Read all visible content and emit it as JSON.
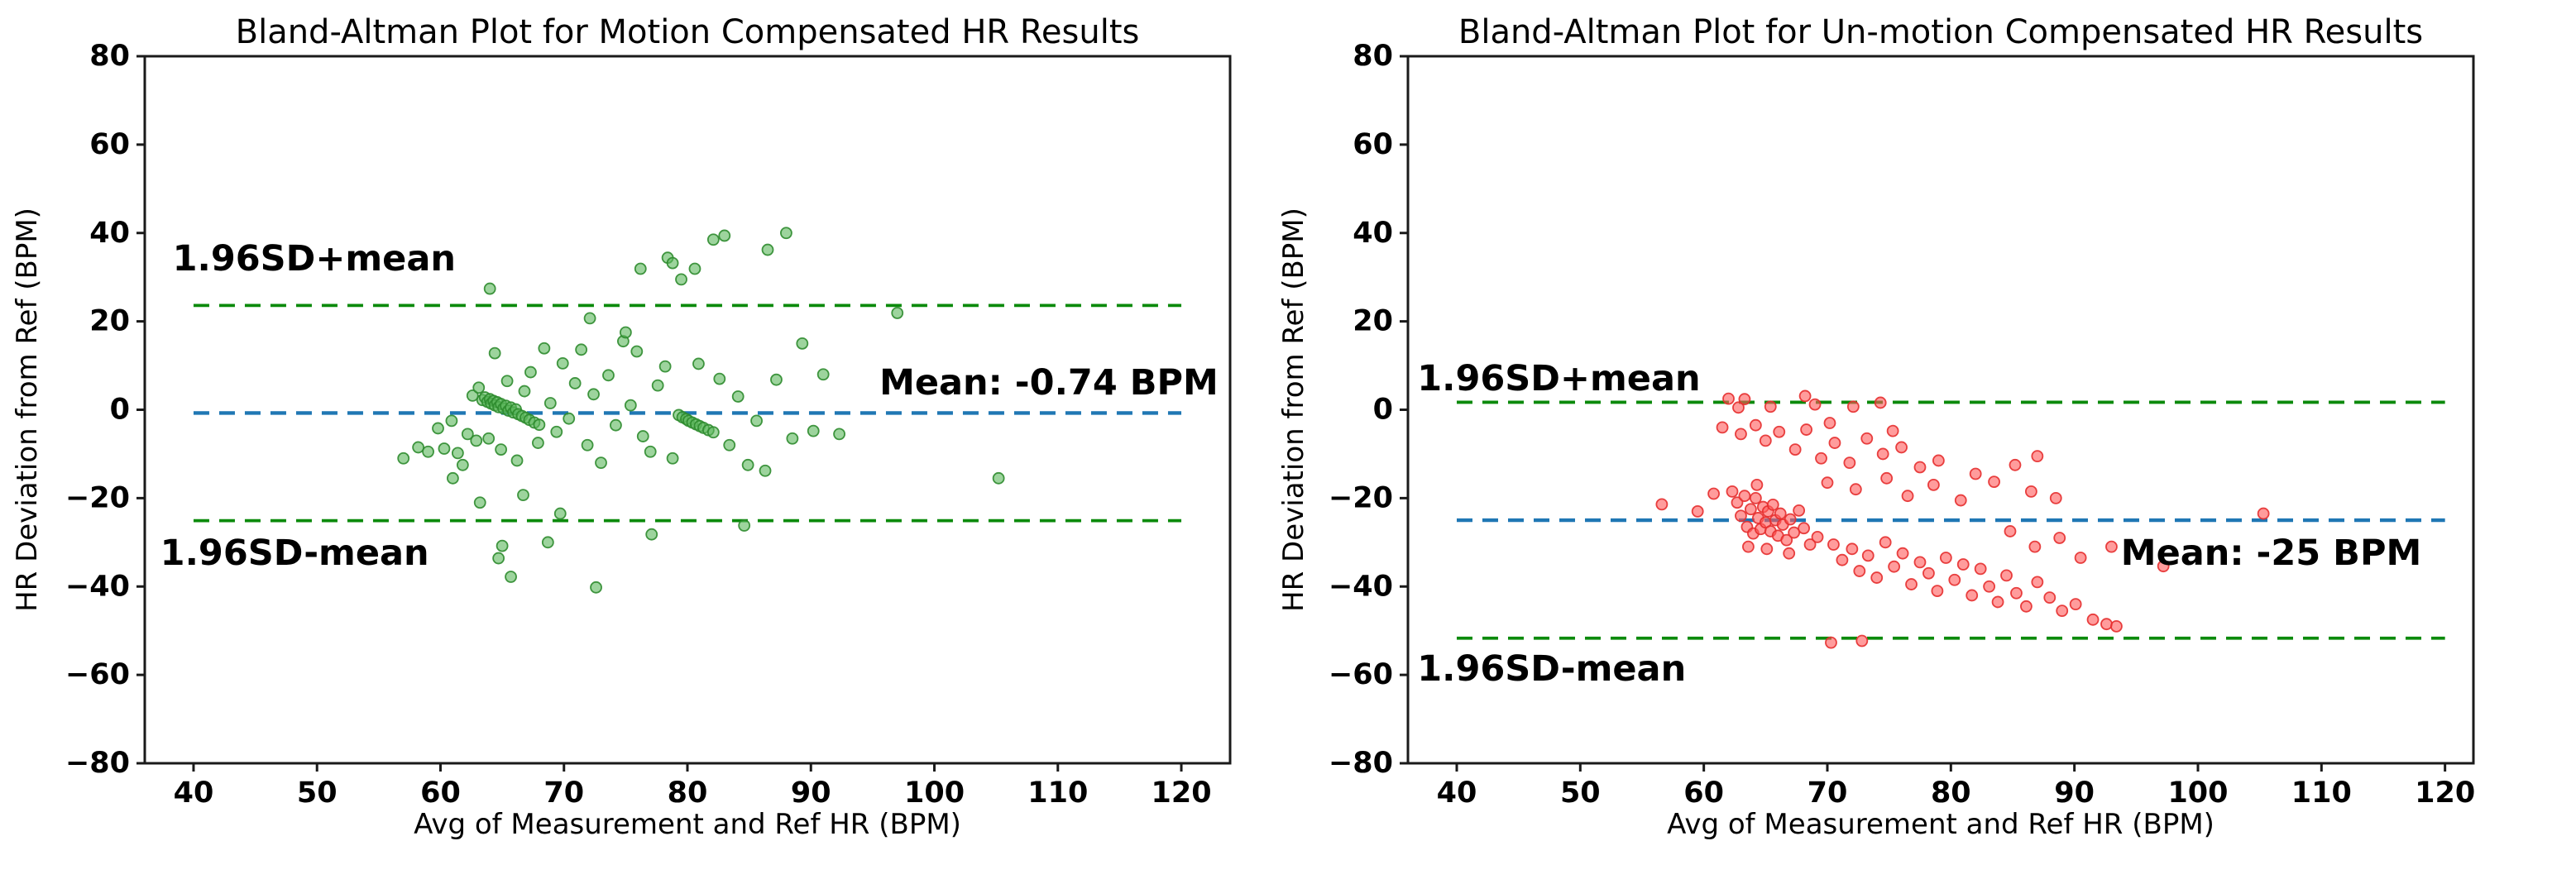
{
  "figure": {
    "background": "#ffffff"
  },
  "chart_data": [
    {
      "type": "scatter",
      "panel": "left",
      "title": "Bland-Altman Plot for Motion Compensated HR Results",
      "xlabel": "Avg of Measurement and Ref HR (BPM)",
      "ylabel": "HR Deviation from Ref (BPM)",
      "xlim": [
        36.05,
        123.95
      ],
      "ylim": [
        -80,
        80
      ],
      "xticks": [
        40,
        50,
        60,
        70,
        80,
        90,
        100,
        110,
        120
      ],
      "x_tick_labels": [
        "40",
        "50",
        "60",
        "70",
        "80",
        "90",
        "100",
        "110",
        "120"
      ],
      "yticks": [
        -80,
        -60,
        -40,
        -20,
        0,
        20,
        40,
        60,
        80
      ],
      "y_tick_labels": [
        "−80",
        "−60",
        "−40",
        "−20",
        "0",
        "20",
        "40",
        "60",
        "80"
      ],
      "grid": false,
      "legend": null,
      "mean": -0.74,
      "upper_limit": 23.6,
      "lower_limit": -25.1,
      "line_span_x": [
        40,
        120
      ],
      "annotations": [
        {
          "text": "1.96SD+mean",
          "x": 38.3,
          "y": 31.5,
          "anchor": "start"
        },
        {
          "text": "1.96SD-mean",
          "x": 37.3,
          "y": -35.1,
          "anchor": "start"
        },
        {
          "text": "Mean: -0.74 BPM",
          "x": 123.0,
          "y": 3.5,
          "anchor": "end"
        }
      ],
      "colors": {
        "points_fill": "#5cb85c",
        "points_edge": "#2e8b2e",
        "mean_line": "#1f77b4",
        "limit_line": "#0b8a0b"
      },
      "points": [
        [
          63.4,
          2.2
        ],
        [
          63.6,
          2.8
        ],
        [
          63.8,
          1.8
        ],
        [
          64.0,
          2.4
        ],
        [
          64.1,
          1.4
        ],
        [
          64.3,
          2.0
        ],
        [
          64.4,
          1.0
        ],
        [
          64.6,
          1.7
        ],
        [
          64.7,
          0.6
        ],
        [
          64.9,
          1.3
        ],
        [
          65.1,
          0.3
        ],
        [
          65.3,
          0.9
        ],
        [
          65.5,
          -0.2
        ],
        [
          65.7,
          0.5
        ],
        [
          65.9,
          -0.6
        ],
        [
          66.1,
          0.1
        ],
        [
          66.3,
          -1.0
        ],
        [
          66.6,
          -1.4
        ],
        [
          66.9,
          -1.8
        ],
        [
          67.2,
          -2.3
        ],
        [
          67.6,
          -2.9
        ],
        [
          68.0,
          -3.4
        ],
        [
          79.3,
          -1.2
        ],
        [
          79.6,
          -1.7
        ],
        [
          79.9,
          -2.1
        ],
        [
          80.1,
          -2.5
        ],
        [
          80.4,
          -2.9
        ],
        [
          80.7,
          -3.3
        ],
        [
          81.0,
          -3.7
        ],
        [
          81.3,
          -4.1
        ],
        [
          81.7,
          -4.6
        ],
        [
          82.1,
          -5.1
        ],
        [
          57.0,
          -11.0
        ],
        [
          58.2,
          -8.5
        ],
        [
          59.0,
          -9.5
        ],
        [
          59.8,
          -4.2
        ],
        [
          60.3,
          -8.8
        ],
        [
          60.9,
          -2.5
        ],
        [
          61.4,
          -9.8
        ],
        [
          61.8,
          -12.5
        ],
        [
          62.2,
          -5.5
        ],
        [
          62.6,
          3.2
        ],
        [
          62.9,
          -7.0
        ],
        [
          63.1,
          5.0
        ],
        [
          63.9,
          -6.5
        ],
        [
          64.4,
          12.8
        ],
        [
          64.9,
          -9.0
        ],
        [
          65.4,
          6.5
        ],
        [
          66.2,
          -11.5
        ],
        [
          66.8,
          4.2
        ],
        [
          67.3,
          8.5
        ],
        [
          67.9,
          -7.5
        ],
        [
          68.4,
          13.9
        ],
        [
          68.9,
          1.5
        ],
        [
          69.4,
          -5.0
        ],
        [
          69.9,
          10.5
        ],
        [
          70.4,
          -2.0
        ],
        [
          70.9,
          6.0
        ],
        [
          71.4,
          13.6
        ],
        [
          71.9,
          -8.0
        ],
        [
          72.4,
          3.5
        ],
        [
          73.0,
          -12.0
        ],
        [
          73.6,
          7.8
        ],
        [
          74.2,
          -3.5
        ],
        [
          74.8,
          15.5
        ],
        [
          75.4,
          1.0
        ],
        [
          75.9,
          13.2
        ],
        [
          76.4,
          -6.0
        ],
        [
          77.0,
          -9.5
        ],
        [
          77.6,
          5.5
        ],
        [
          78.2,
          9.8
        ],
        [
          78.8,
          -11.0
        ],
        [
          80.9,
          10.4
        ],
        [
          82.6,
          7.0
        ],
        [
          83.4,
          -8.0
        ],
        [
          84.1,
          3.0
        ],
        [
          84.9,
          -12.5
        ],
        [
          85.6,
          -2.5
        ],
        [
          86.3,
          -13.8
        ],
        [
          87.2,
          6.8
        ],
        [
          88.5,
          -6.5
        ],
        [
          89.3,
          15.0
        ],
        [
          90.2,
          -4.8
        ],
        [
          91.0,
          8.0
        ],
        [
          92.3,
          -5.5
        ],
        [
          64.0,
          27.4
        ],
        [
          72.1,
          20.7
        ],
        [
          75.0,
          17.5
        ],
        [
          76.2,
          31.9
        ],
        [
          78.4,
          34.4
        ],
        [
          78.8,
          33.2
        ],
        [
          79.5,
          29.5
        ],
        [
          80.6,
          31.9
        ],
        [
          82.1,
          38.5
        ],
        [
          83.0,
          39.4
        ],
        [
          86.5,
          36.2
        ],
        [
          88.0,
          40.0
        ],
        [
          97.0,
          21.9
        ],
        [
          63.2,
          -21.0
        ],
        [
          66.7,
          -19.3
        ],
        [
          65.0,
          -30.8
        ],
        [
          68.7,
          -30.0
        ],
        [
          69.7,
          -23.5
        ],
        [
          64.7,
          -33.6
        ],
        [
          65.7,
          -37.8
        ],
        [
          72.6,
          -40.2
        ],
        [
          77.1,
          -28.2
        ],
        [
          84.6,
          -26.2
        ],
        [
          61.0,
          -15.5
        ],
        [
          105.2,
          -15.5
        ]
      ]
    },
    {
      "type": "scatter",
      "panel": "right",
      "title": "Bland-Altman Plot for Un-motion Compensated HR Results",
      "xlabel": "Avg of Measurement and Ref HR (BPM)",
      "ylabel": "HR Deviation from Ref (BPM)",
      "xlim": [
        36.05,
        122.3
      ],
      "ylim": [
        -80,
        80
      ],
      "xticks": [
        40,
        50,
        60,
        70,
        80,
        90,
        100,
        110,
        120
      ],
      "x_tick_labels": [
        "40",
        "50",
        "60",
        "70",
        "80",
        "90",
        "100",
        "110",
        "120"
      ],
      "yticks": [
        -80,
        -60,
        -40,
        -20,
        0,
        20,
        40,
        60,
        80
      ],
      "y_tick_labels": [
        "−80",
        "−60",
        "−40",
        "−20",
        "0",
        "20",
        "40",
        "60",
        "80"
      ],
      "grid": false,
      "legend": null,
      "mean": -25,
      "upper_limit": 1.7,
      "lower_limit": -51.7,
      "line_span_x": [
        40,
        120
      ],
      "annotations": [
        {
          "text": "1.96SD+mean",
          "x": 36.8,
          "y": 4.4,
          "anchor": "start"
        },
        {
          "text": "1.96SD-mean",
          "x": 36.8,
          "y": -61.3,
          "anchor": "start"
        },
        {
          "text": "Mean: -25 BPM",
          "x": 118.1,
          "y": -35.1,
          "anchor": "end"
        }
      ],
      "colors": {
        "points_fill": "#ff5a5a",
        "points_edge": "#e62e2e",
        "mean_line": "#1f77b4",
        "limit_line": "#0b8a0b"
      },
      "points": [
        [
          62.0,
          2.5
        ],
        [
          68.2,
          3.1
        ],
        [
          72.1,
          0.7
        ],
        [
          74.3,
          1.6
        ],
        [
          62.8,
          0.5
        ],
        [
          69.0,
          1.2
        ],
        [
          63.3,
          2.4
        ],
        [
          65.4,
          0.7
        ],
        [
          61.5,
          -4.0
        ],
        [
          63.0,
          -5.5
        ],
        [
          64.2,
          -3.5
        ],
        [
          65.0,
          -7.0
        ],
        [
          66.1,
          -5.0
        ],
        [
          67.4,
          -9.0
        ],
        [
          68.3,
          -4.5
        ],
        [
          69.5,
          -11.0
        ],
        [
          70.6,
          -7.5
        ],
        [
          71.8,
          -12.0
        ],
        [
          73.2,
          -6.5
        ],
        [
          74.5,
          -10.0
        ],
        [
          76.0,
          -8.5
        ],
        [
          77.5,
          -13.0
        ],
        [
          79.0,
          -11.5
        ],
        [
          83.5,
          -16.3
        ],
        [
          85.2,
          -12.5
        ],
        [
          87.0,
          -10.5
        ],
        [
          70.2,
          -3.0
        ],
        [
          75.3,
          -4.8
        ],
        [
          62.3,
          -18.5
        ],
        [
          62.7,
          -21.0
        ],
        [
          63.0,
          -24.0
        ],
        [
          63.3,
          -19.5
        ],
        [
          63.5,
          -26.5
        ],
        [
          63.8,
          -22.5
        ],
        [
          64.0,
          -28.0
        ],
        [
          64.2,
          -20.0
        ],
        [
          64.4,
          -24.5
        ],
        [
          64.6,
          -27.0
        ],
        [
          64.8,
          -22.0
        ],
        [
          65.0,
          -25.5
        ],
        [
          65.2,
          -23.0
        ],
        [
          65.4,
          -27.5
        ],
        [
          65.6,
          -21.5
        ],
        [
          65.8,
          -25.0
        ],
        [
          66.0,
          -28.5
        ],
        [
          66.2,
          -23.5
        ],
        [
          66.4,
          -26.0
        ],
        [
          66.7,
          -29.5
        ],
        [
          67.0,
          -24.8
        ],
        [
          67.3,
          -27.8
        ],
        [
          67.7,
          -22.8
        ],
        [
          68.1,
          -26.8
        ],
        [
          68.6,
          -30.5
        ],
        [
          69.2,
          -28.8
        ],
        [
          65.1,
          -31.5
        ],
        [
          63.6,
          -31.0
        ],
        [
          66.9,
          -32.5
        ],
        [
          64.3,
          -17.0
        ],
        [
          56.6,
          -21.4
        ],
        [
          59.5,
          -23.0
        ],
        [
          60.8,
          -19.0
        ],
        [
          70.5,
          -30.5
        ],
        [
          71.2,
          -34.0
        ],
        [
          72.0,
          -31.5
        ],
        [
          72.6,
          -36.5
        ],
        [
          73.3,
          -33.0
        ],
        [
          74.0,
          -38.0
        ],
        [
          74.7,
          -30.0
        ],
        [
          75.4,
          -35.5
        ],
        [
          76.1,
          -32.5
        ],
        [
          76.8,
          -39.5
        ],
        [
          77.5,
          -34.5
        ],
        [
          78.2,
          -37.0
        ],
        [
          78.9,
          -41.0
        ],
        [
          79.6,
          -33.5
        ],
        [
          80.3,
          -38.5
        ],
        [
          81.0,
          -35.0
        ],
        [
          81.7,
          -42.0
        ],
        [
          82.4,
          -36.0
        ],
        [
          83.1,
          -40.0
        ],
        [
          83.8,
          -43.5
        ],
        [
          84.5,
          -37.5
        ],
        [
          85.3,
          -41.5
        ],
        [
          86.1,
          -44.5
        ],
        [
          87.0,
          -39.0
        ],
        [
          88.0,
          -42.5
        ],
        [
          89.0,
          -45.5
        ],
        [
          90.1,
          -44.0
        ],
        [
          70.0,
          -16.5
        ],
        [
          72.3,
          -18.0
        ],
        [
          74.8,
          -15.5
        ],
        [
          76.5,
          -19.5
        ],
        [
          78.6,
          -17.0
        ],
        [
          80.8,
          -20.5
        ],
        [
          82.0,
          -14.5
        ],
        [
          88.5,
          -20.0
        ],
        [
          86.5,
          -18.5
        ],
        [
          84.8,
          -27.5
        ],
        [
          86.8,
          -31.0
        ],
        [
          88.8,
          -29.0
        ],
        [
          90.5,
          -33.5
        ],
        [
          91.5,
          -47.5
        ],
        [
          92.6,
          -48.5
        ],
        [
          93.4,
          -49.0
        ],
        [
          97.2,
          -35.4
        ],
        [
          105.3,
          -23.5
        ],
        [
          93.0,
          -31.0
        ],
        [
          70.3,
          -52.7
        ],
        [
          72.8,
          -52.3
        ]
      ]
    }
  ]
}
